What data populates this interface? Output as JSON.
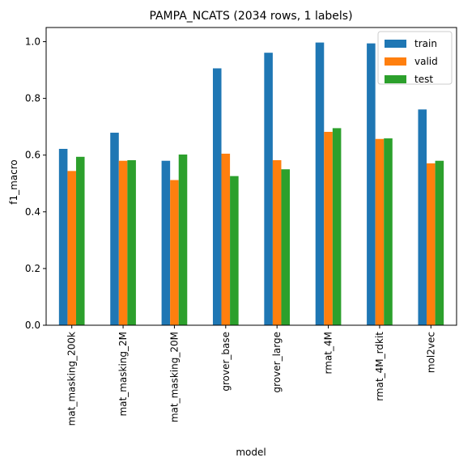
{
  "chart_data": {
    "type": "bar",
    "title": "PAMPA_NCATS (2034 rows, 1 labels)",
    "xlabel": "model",
    "ylabel": "f1_macro",
    "ylim": [
      0,
      1.05
    ],
    "yticks": [
      "0.0",
      "0.2",
      "0.4",
      "0.6",
      "0.8",
      "1.0"
    ],
    "grid": false,
    "legend_position": "top-right",
    "categories": [
      "mat_masking_200k",
      "mat_masking_2M",
      "mat_masking_20M",
      "grover_base",
      "grover_large",
      "rmat_4M",
      "rmat_4M_rdkit",
      "mol2vec"
    ],
    "series": [
      {
        "name": "train",
        "color": "#1f77b4",
        "values": [
          0.622,
          0.679,
          0.58,
          0.906,
          0.961,
          0.997,
          0.994,
          0.761
        ]
      },
      {
        "name": "valid",
        "color": "#ff7f0e",
        "values": [
          0.544,
          0.58,
          0.512,
          0.605,
          0.582,
          0.682,
          0.657,
          0.571
        ]
      },
      {
        "name": "test",
        "color": "#2ca02c",
        "values": [
          0.594,
          0.582,
          0.602,
          0.526,
          0.55,
          0.695,
          0.659,
          0.58
        ]
      }
    ]
  }
}
